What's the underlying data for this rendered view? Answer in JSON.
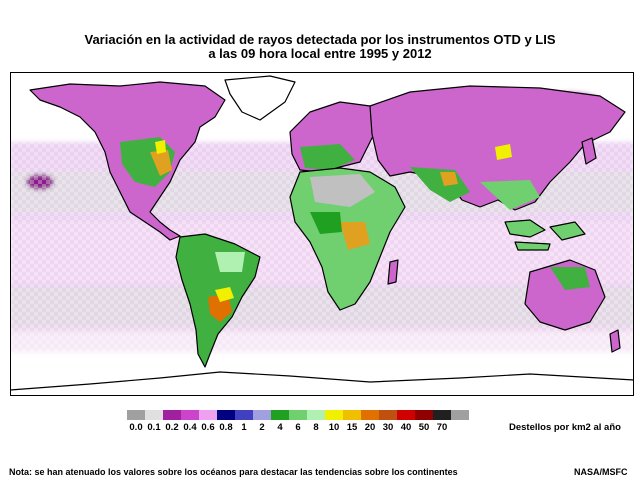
{
  "title_line1": "Variación en la actividad de rayos detectada por los instrumentos OTD y LIS",
  "title_line2": "a las 09 hora local entre 1995 y 2012",
  "legend": {
    "unit": "Destellos por km2 al año",
    "ticks": [
      "0.0",
      "0.1",
      "0.2",
      "0.4",
      "0.6",
      "0.8",
      "1",
      "2",
      "4",
      "6",
      "8",
      "10",
      "15",
      "20",
      "30",
      "40",
      "50",
      "70"
    ],
    "colors": [
      "#a0a0a0",
      "#e0e0e0",
      "#a020a0",
      "#cc44cc",
      "#f0a0f0",
      "#000080",
      "#4040c0",
      "#a0a0e0",
      "#20a020",
      "#70d070",
      "#b0f0b0",
      "#f0f000",
      "#f0c000",
      "#e07000",
      "#c05010",
      "#d00000",
      "#900000",
      "#202020",
      "#a0a0a0"
    ]
  },
  "note": "Nota: se han atenuado los valores sobre los océanos para destacar las tendencias sobre los continentes",
  "credit": "NASA/MSFC"
}
